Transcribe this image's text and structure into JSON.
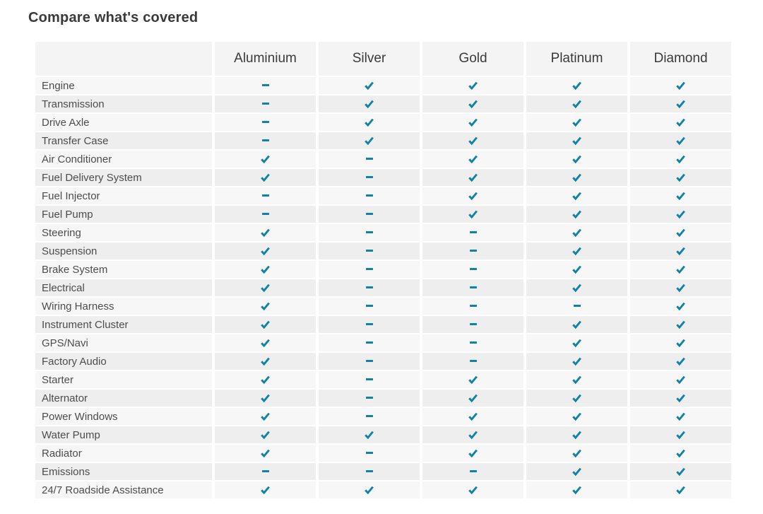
{
  "page": {
    "title": "Compare what's covered"
  },
  "table": {
    "plans": [
      "Aluminium",
      "Silver",
      "Gold",
      "Platinum",
      "Diamond"
    ],
    "icons": {
      "covered": "check-icon",
      "not_covered": "dash-icon"
    },
    "colors": {
      "accent_teal": "#0f82a8",
      "row_odd": "#f7f7f7",
      "row_even": "#eeeeee",
      "header_bg": "#f4f4f4",
      "title_text": "#3a3a3a",
      "label_text": "#4c4c4c"
    },
    "rows": [
      {
        "label": "Engine",
        "coverage": [
          false,
          true,
          true,
          true,
          true
        ]
      },
      {
        "label": "Transmission",
        "coverage": [
          false,
          true,
          true,
          true,
          true
        ]
      },
      {
        "label": "Drive Axle",
        "coverage": [
          false,
          true,
          true,
          true,
          true
        ]
      },
      {
        "label": "Transfer Case",
        "coverage": [
          false,
          true,
          true,
          true,
          true
        ]
      },
      {
        "label": "Air Conditioner",
        "coverage": [
          true,
          false,
          true,
          true,
          true
        ]
      },
      {
        "label": "Fuel Delivery System",
        "coverage": [
          true,
          false,
          true,
          true,
          true
        ]
      },
      {
        "label": "Fuel Injector",
        "coverage": [
          false,
          false,
          true,
          true,
          true
        ]
      },
      {
        "label": "Fuel Pump",
        "coverage": [
          false,
          false,
          true,
          true,
          true
        ]
      },
      {
        "label": "Steering",
        "coverage": [
          true,
          false,
          false,
          true,
          true
        ]
      },
      {
        "label": "Suspension",
        "coverage": [
          true,
          false,
          false,
          true,
          true
        ]
      },
      {
        "label": "Brake System",
        "coverage": [
          true,
          false,
          false,
          true,
          true
        ]
      },
      {
        "label": "Electrical",
        "coverage": [
          true,
          false,
          false,
          true,
          true
        ]
      },
      {
        "label": "Wiring Harness",
        "coverage": [
          true,
          false,
          false,
          false,
          true
        ]
      },
      {
        "label": "Instrument Cluster",
        "coverage": [
          true,
          false,
          false,
          true,
          true
        ]
      },
      {
        "label": "GPS/Navi",
        "coverage": [
          true,
          false,
          false,
          true,
          true
        ]
      },
      {
        "label": "Factory Audio",
        "coverage": [
          true,
          false,
          false,
          true,
          true
        ]
      },
      {
        "label": "Starter",
        "coverage": [
          true,
          false,
          true,
          true,
          true
        ]
      },
      {
        "label": "Alternator",
        "coverage": [
          true,
          false,
          true,
          true,
          true
        ]
      },
      {
        "label": "Power Windows",
        "coverage": [
          true,
          false,
          true,
          true,
          true
        ]
      },
      {
        "label": "Water Pump",
        "coverage": [
          true,
          true,
          true,
          true,
          true
        ]
      },
      {
        "label": "Radiator",
        "coverage": [
          true,
          false,
          true,
          true,
          true
        ]
      },
      {
        "label": "Emissions",
        "coverage": [
          false,
          false,
          false,
          true,
          true
        ]
      },
      {
        "label": "24/7 Roadside Assistance",
        "coverage": [
          true,
          true,
          true,
          true,
          true
        ]
      }
    ]
  }
}
